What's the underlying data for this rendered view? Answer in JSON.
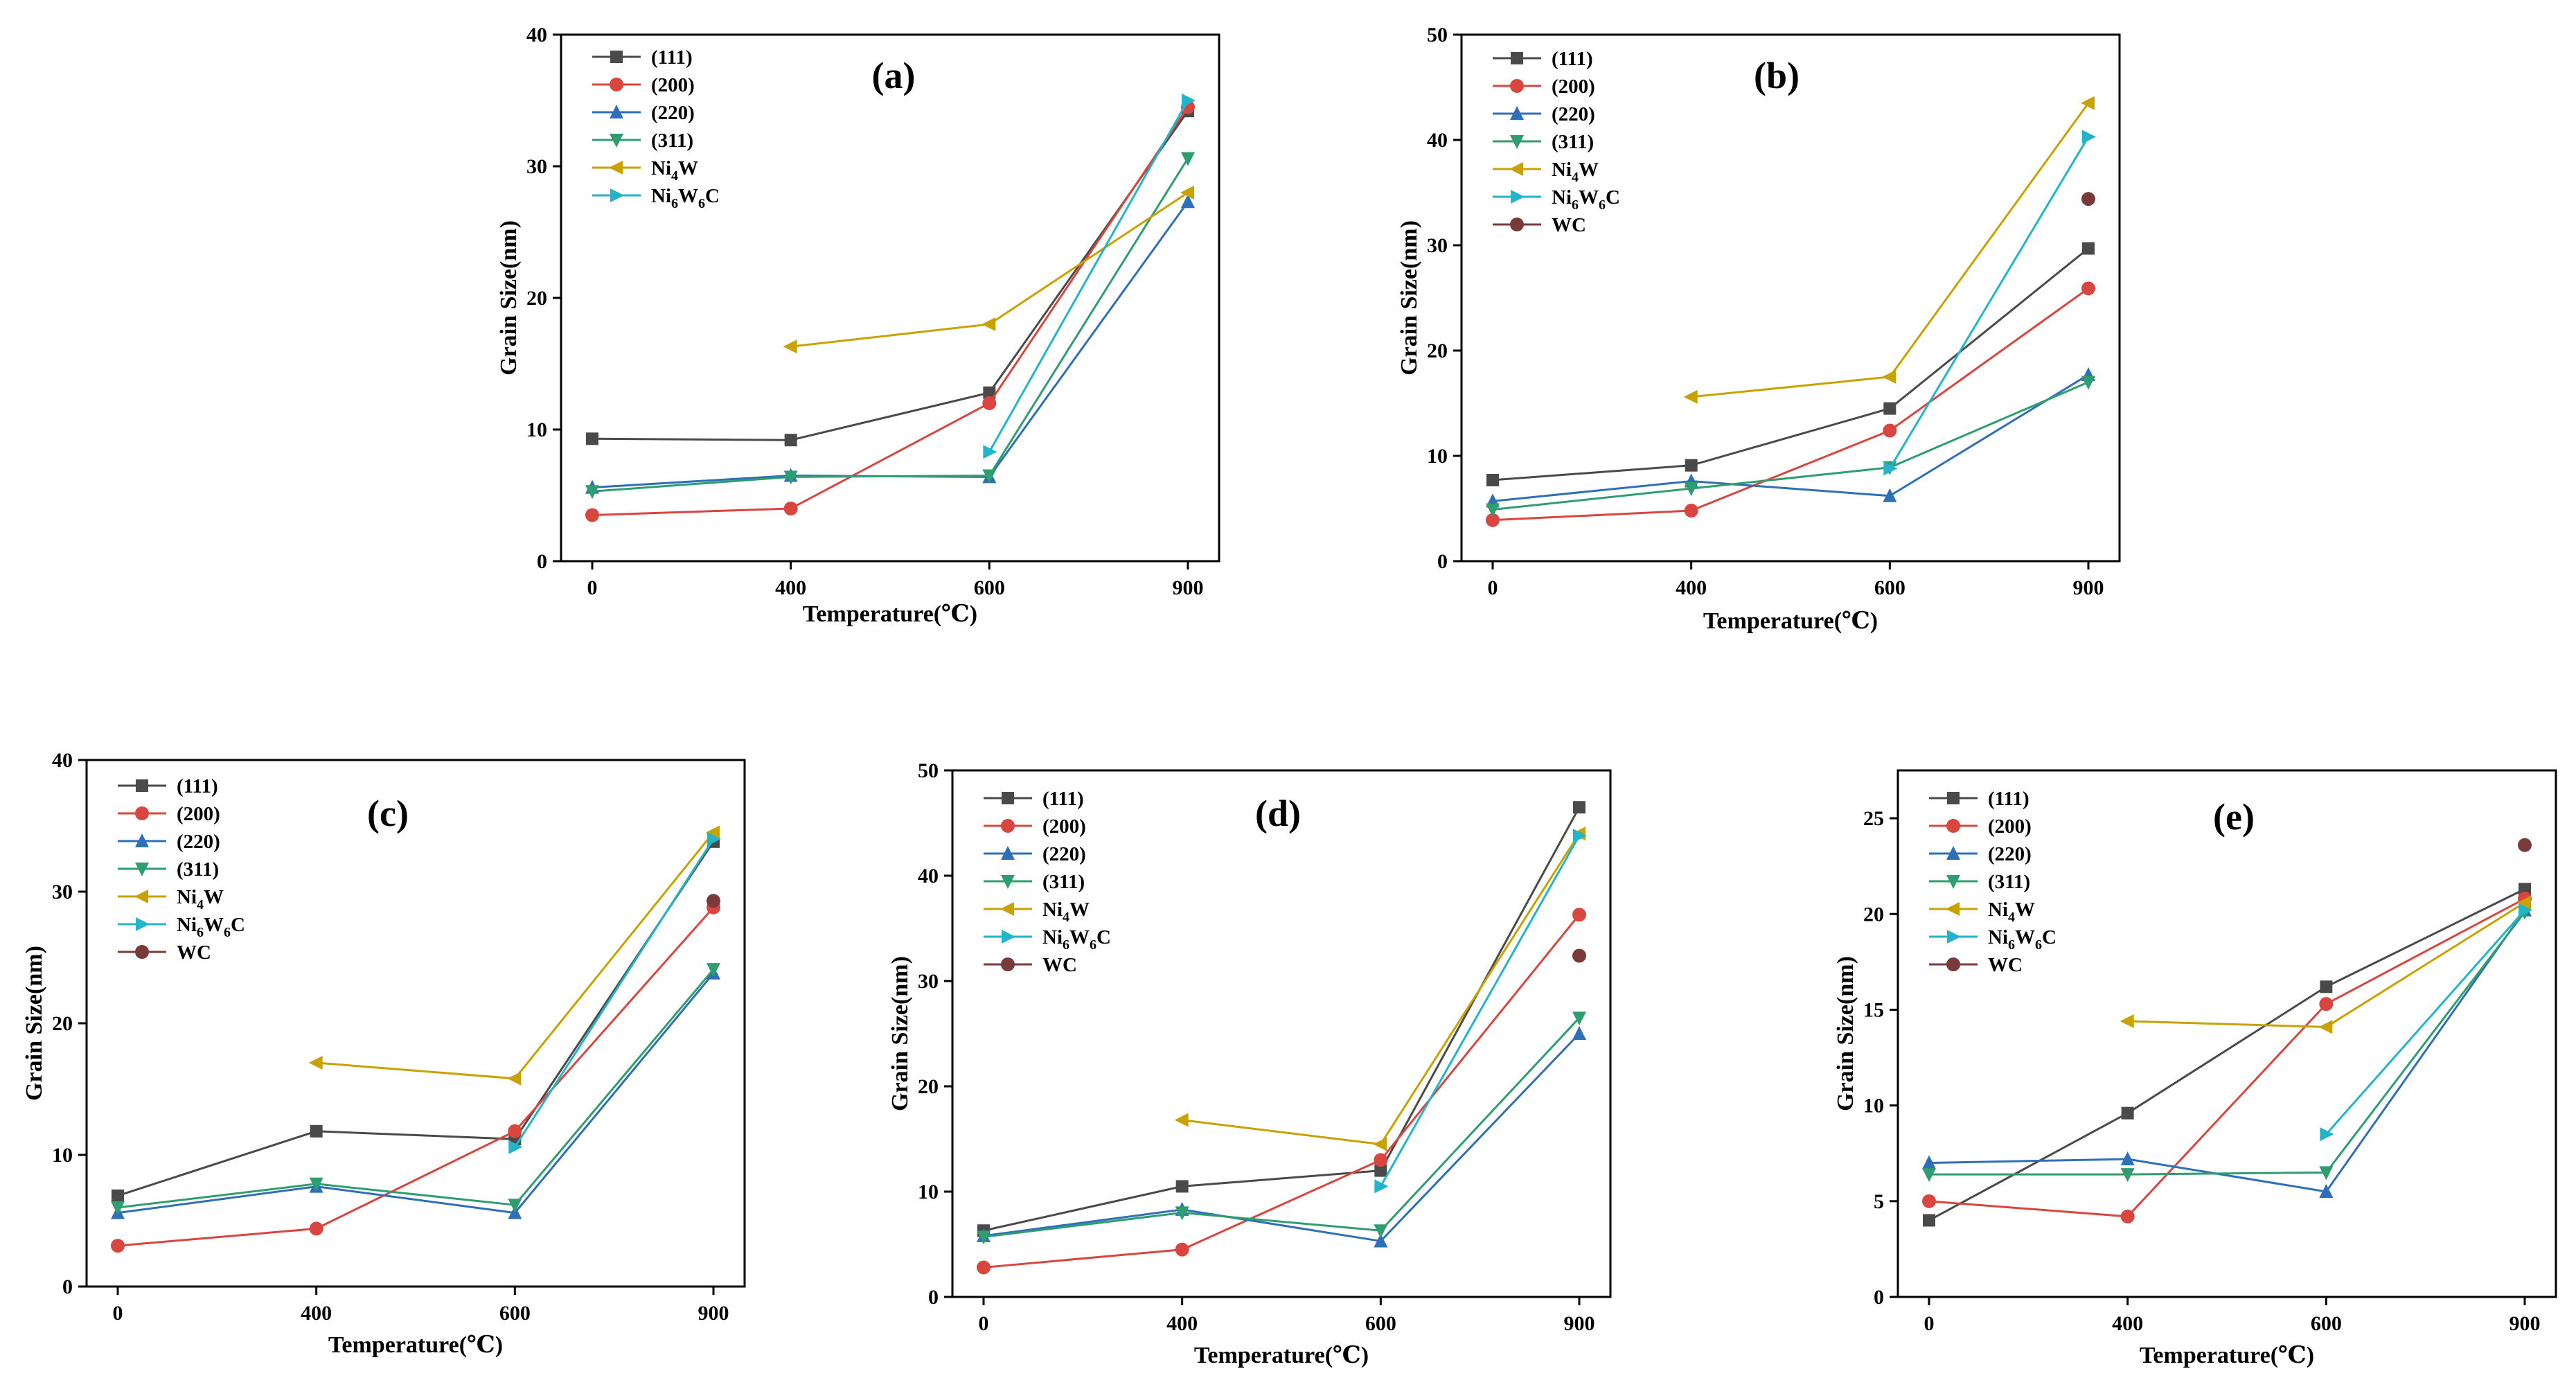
{
  "figure": {
    "series_style": [
      {
        "name": "(111)",
        "color": "#4a4a4a",
        "marker": "square"
      },
      {
        "name": "(200)",
        "color": "#d9463f",
        "marker": "circle"
      },
      {
        "name": "(220)",
        "color": "#2f6fb8",
        "marker": "triangle-up"
      },
      {
        "name": "(311)",
        "color": "#2e9e70",
        "marker": "triangle-down"
      },
      {
        "name": "Ni4W",
        "color": "#c9a200",
        "marker": "triangle-left"
      },
      {
        "name": "Ni6W6C",
        "color": "#22b5c9",
        "marker": "triangle-right"
      },
      {
        "name": "WC",
        "color": "#7a3a3a",
        "marker": "circle"
      }
    ]
  },
  "chart_data": [
    {
      "id": "a",
      "panel_label": "(a)",
      "type": "line",
      "x": [
        0,
        400,
        600,
        900
      ],
      "xticks": [
        "0",
        "400",
        "600",
        "900"
      ],
      "xlabel": "Temperature(℃)",
      "ylabel": "Grain Size(nm)",
      "ylim": [
        0,
        40
      ],
      "yticks": [
        0,
        10,
        20,
        30,
        40
      ],
      "legend": [
        "(111)",
        "(200)",
        "(220)",
        "(311)",
        "Ni4W",
        "Ni6W6C"
      ],
      "legend_parts": [
        [
          "(111)"
        ],
        [
          "(200)"
        ],
        [
          "(220)"
        ],
        [
          "(311)"
        ],
        [
          "Ni",
          "4",
          "W"
        ],
        [
          "Ni",
          "6",
          "W",
          "6",
          "C"
        ]
      ],
      "series": [
        {
          "name": "(111)",
          "values": [
            9.3,
            9.2,
            12.8,
            34.2
          ]
        },
        {
          "name": "(200)",
          "values": [
            3.5,
            4.0,
            12.0,
            34.5
          ]
        },
        {
          "name": "(220)",
          "values": [
            5.6,
            6.5,
            6.4,
            27.3
          ]
        },
        {
          "name": "(311)",
          "values": [
            5.3,
            6.4,
            6.5,
            30.6
          ]
        },
        {
          "name": "Ni4W",
          "values": [
            null,
            16.3,
            18.0,
            28.0
          ]
        },
        {
          "name": "Ni6W6C",
          "values": [
            null,
            null,
            8.3,
            35.0
          ]
        }
      ]
    },
    {
      "id": "b",
      "panel_label": "(b)",
      "type": "line",
      "x": [
        0,
        400,
        600,
        900
      ],
      "xticks": [
        "0",
        "400",
        "600",
        "900"
      ],
      "xlabel": "Temperature(℃)",
      "ylabel": "Grain Size(nm)",
      "ylim": [
        0,
        50
      ],
      "yticks": [
        0,
        10,
        20,
        30,
        40,
        50
      ],
      "legend": [
        "(111)",
        "(200)",
        "(220)",
        "(311)",
        "Ni4W",
        "Ni6W6C",
        "WC"
      ],
      "legend_parts": [
        [
          "(111)"
        ],
        [
          "(200)"
        ],
        [
          "(220)"
        ],
        [
          "(311)"
        ],
        [
          "Ni",
          "4",
          "W"
        ],
        [
          "Ni",
          "6",
          "W",
          "6",
          "C"
        ],
        [
          "WC"
        ]
      ],
      "series": [
        {
          "name": "(111)",
          "values": [
            7.7,
            9.1,
            14.5,
            29.7
          ]
        },
        {
          "name": "(200)",
          "values": [
            3.9,
            4.8,
            12.4,
            25.9
          ]
        },
        {
          "name": "(220)",
          "values": [
            5.7,
            7.6,
            6.2,
            17.7
          ]
        },
        {
          "name": "(311)",
          "values": [
            4.9,
            6.9,
            8.9,
            17.0
          ]
        },
        {
          "name": "Ni4W",
          "values": [
            null,
            15.6,
            17.5,
            43.5
          ]
        },
        {
          "name": "Ni6W6C",
          "values": [
            null,
            null,
            8.8,
            40.3
          ]
        },
        {
          "name": "WC",
          "values": [
            null,
            null,
            null,
            34.4
          ]
        }
      ]
    },
    {
      "id": "c",
      "panel_label": "(c)",
      "type": "line",
      "x": [
        0,
        400,
        600,
        900
      ],
      "xticks": [
        "0",
        "400",
        "600",
        "900"
      ],
      "xlabel": "Temperature(℃)",
      "ylabel": "Grain Size(nm)",
      "ylim": [
        0,
        40
      ],
      "yticks": [
        0,
        10,
        20,
        30,
        40
      ],
      "legend": [
        "(111)",
        "(200)",
        "(220)",
        "(311)",
        "Ni4W",
        "Ni6W6C",
        "WC"
      ],
      "legend_parts": [
        [
          "(111)"
        ],
        [
          "(200)"
        ],
        [
          "(220)"
        ],
        [
          "(311)"
        ],
        [
          "Ni",
          "4",
          "W"
        ],
        [
          "Ni",
          "6",
          "W",
          "6",
          "C"
        ],
        [
          "WC"
        ]
      ],
      "series": [
        {
          "name": "(111)",
          "values": [
            6.9,
            11.8,
            11.2,
            33.8
          ]
        },
        {
          "name": "(200)",
          "values": [
            3.1,
            4.4,
            11.8,
            28.8
          ]
        },
        {
          "name": "(220)",
          "values": [
            5.6,
            7.6,
            5.6,
            23.8
          ]
        },
        {
          "name": "(311)",
          "values": [
            6.0,
            7.8,
            6.2,
            24.1
          ]
        },
        {
          "name": "Ni4W",
          "values": [
            null,
            17.0,
            15.8,
            34.5
          ]
        },
        {
          "name": "Ni6W6C",
          "values": [
            null,
            null,
            10.6,
            34.0
          ]
        },
        {
          "name": "WC",
          "values": [
            null,
            null,
            null,
            29.3
          ]
        }
      ]
    },
    {
      "id": "d",
      "panel_label": "(d)",
      "type": "line",
      "x": [
        0,
        400,
        600,
        900
      ],
      "xticks": [
        "0",
        "400",
        "600",
        "900"
      ],
      "xlabel": "Temperature(℃)",
      "ylabel": "Grain Size(nm)",
      "ylim": [
        0,
        50
      ],
      "yticks": [
        0,
        10,
        20,
        30,
        40,
        50
      ],
      "legend": [
        "(111)",
        "(200)",
        "(220)",
        "(311)",
        "Ni4W",
        "Ni6W6C",
        "WC"
      ],
      "legend_parts": [
        [
          "(111)"
        ],
        [
          "(200)"
        ],
        [
          "(220)"
        ],
        [
          "(311)"
        ],
        [
          "Ni",
          "4",
          "W"
        ],
        [
          "Ni",
          "6",
          "W",
          "6",
          "C"
        ],
        [
          "WC"
        ]
      ],
      "series": [
        {
          "name": "(111)",
          "values": [
            6.3,
            10.5,
            12.0,
            46.5
          ]
        },
        {
          "name": "(200)",
          "values": [
            2.8,
            4.5,
            13.0,
            36.3
          ]
        },
        {
          "name": "(220)",
          "values": [
            5.8,
            8.3,
            5.3,
            25.0
          ]
        },
        {
          "name": "(311)",
          "values": [
            5.7,
            8.0,
            6.3,
            26.5
          ]
        },
        {
          "name": "Ni4W",
          "values": [
            null,
            16.8,
            14.5,
            44.0
          ]
        },
        {
          "name": "Ni6W6C",
          "values": [
            null,
            null,
            10.5,
            43.8
          ]
        },
        {
          "name": "WC",
          "values": [
            null,
            null,
            null,
            32.4
          ]
        }
      ]
    },
    {
      "id": "e",
      "panel_label": "(e)",
      "type": "line",
      "x": [
        0,
        400,
        600,
        900
      ],
      "xticks": [
        "0",
        "400",
        "600",
        "900"
      ],
      "xlabel": "Temperature(℃)",
      "ylabel": "Grain Size(nm)",
      "ylim": [
        0,
        27.5
      ],
      "yticks": [
        0,
        5,
        10,
        15,
        20,
        25
      ],
      "legend": [
        "(111)",
        "(200)",
        "(220)",
        "(311)",
        "Ni4W",
        "Ni6W6C",
        "WC"
      ],
      "legend_parts": [
        [
          "(111)"
        ],
        [
          "(200)"
        ],
        [
          "(220)"
        ],
        [
          "(311)"
        ],
        [
          "Ni",
          "4",
          "W"
        ],
        [
          "Ni",
          "6",
          "W",
          "6",
          "C"
        ],
        [
          "WC"
        ]
      ],
      "series": [
        {
          "name": "(111)",
          "values": [
            4.0,
            9.6,
            16.2,
            21.3
          ]
        },
        {
          "name": "(200)",
          "values": [
            5.0,
            4.2,
            15.3,
            20.8
          ]
        },
        {
          "name": "(220)",
          "values": [
            7.0,
            7.2,
            5.5,
            20.2
          ]
        },
        {
          "name": "(311)",
          "values": [
            6.4,
            6.4,
            6.5,
            20.1
          ]
        },
        {
          "name": "Ni4W",
          "values": [
            null,
            14.4,
            14.1,
            20.6
          ]
        },
        {
          "name": "Ni6W6C",
          "values": [
            null,
            null,
            8.5,
            20.2
          ]
        },
        {
          "name": "WC",
          "values": [
            null,
            null,
            null,
            23.6
          ]
        }
      ]
    }
  ]
}
